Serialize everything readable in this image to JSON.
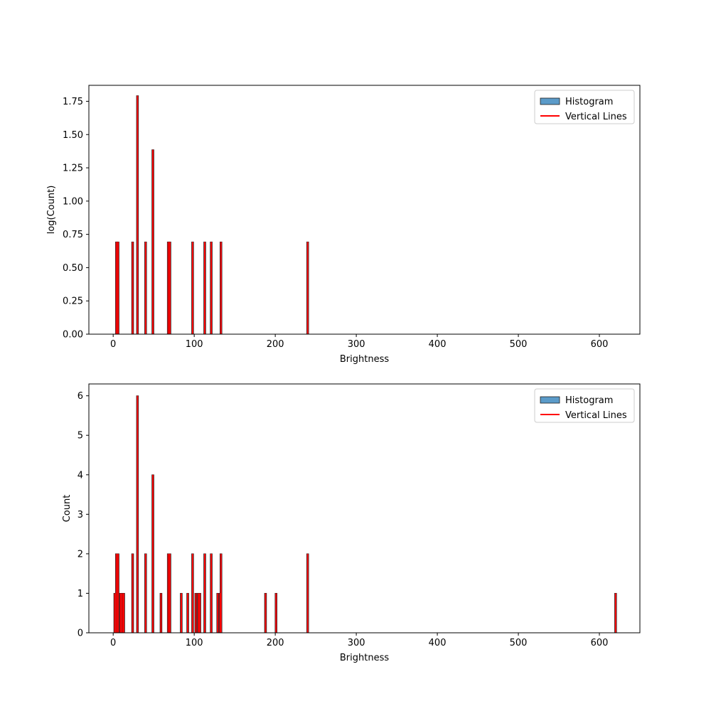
{
  "chart_data": [
    {
      "type": "bar",
      "panel": "top",
      "xlabel": "Brightness",
      "ylabel": "log(Count)",
      "xlim": [
        -30,
        650
      ],
      "ylim": [
        0,
        1.87
      ],
      "xticks": [
        0,
        100,
        200,
        300,
        400,
        500,
        600
      ],
      "yticks": [
        0.0,
        0.25,
        0.5,
        0.75,
        1.0,
        1.25,
        1.5,
        1.75
      ],
      "ytick_labels": [
        "0.00",
        "0.25",
        "0.50",
        "0.75",
        "1.00",
        "1.25",
        "1.50",
        "1.75"
      ],
      "legend": {
        "placement": "top-right",
        "entries": [
          "Histogram",
          "Vertical Lines"
        ]
      },
      "grid": false,
      "series": [
        {
          "name": "Histogram",
          "kind": "bar",
          "color": "#5b9bc9",
          "x": [
            4,
            6,
            24,
            30,
            40,
            49,
            68,
            70,
            98,
            113,
            121,
            133,
            240
          ],
          "values": [
            0.693,
            0.693,
            0.693,
            1.792,
            0.693,
            1.386,
            0.693,
            0.693,
            0.693,
            0.693,
            0.693,
            0.693,
            0.693
          ]
        },
        {
          "name": "Vertical Lines",
          "kind": "vlines",
          "color": "#ff0000",
          "x": [
            4,
            6,
            24,
            30,
            40,
            49,
            68,
            70,
            98,
            113,
            121,
            133,
            240
          ],
          "values": [
            0.693,
            0.693,
            0.693,
            1.792,
            0.693,
            1.386,
            0.693,
            0.693,
            0.693,
            0.693,
            0.693,
            0.693,
            0.693
          ]
        }
      ]
    },
    {
      "type": "bar",
      "panel": "bottom",
      "xlabel": "Brightness",
      "ylabel": "Count",
      "xlim": [
        -30,
        650
      ],
      "ylim": [
        0,
        6.3
      ],
      "xticks": [
        0,
        100,
        200,
        300,
        400,
        500,
        600
      ],
      "yticks": [
        0,
        1,
        2,
        3,
        4,
        5,
        6
      ],
      "ytick_labels": [
        "0",
        "1",
        "2",
        "3",
        "4",
        "5",
        "6"
      ],
      "legend": {
        "placement": "top-right",
        "entries": [
          "Histogram",
          "Vertical Lines"
        ]
      },
      "grid": false,
      "series": [
        {
          "name": "Histogram",
          "kind": "bar",
          "color": "#5b9bc9",
          "x": [
            2,
            4,
            6,
            9,
            11,
            13,
            24,
            30,
            40,
            49,
            59,
            68,
            70,
            84,
            92,
            98,
            102,
            105,
            107,
            113,
            121,
            129,
            132,
            133,
            188,
            201,
            240,
            620
          ],
          "values": [
            1,
            2,
            2,
            1,
            1,
            1,
            2,
            6,
            2,
            4,
            1,
            2,
            2,
            1,
            1,
            2,
            1,
            1,
            1,
            2,
            2,
            1,
            1,
            2,
            1,
            1,
            2,
            1
          ]
        },
        {
          "name": "Vertical Lines",
          "kind": "vlines",
          "color": "#ff0000",
          "x": [
            2,
            4,
            6,
            9,
            11,
            13,
            24,
            30,
            40,
            49,
            59,
            68,
            70,
            84,
            92,
            98,
            102,
            105,
            107,
            113,
            121,
            129,
            132,
            133,
            188,
            201,
            240,
            620
          ],
          "values": [
            1,
            2,
            2,
            1,
            1,
            1,
            2,
            6,
            2,
            4,
            1,
            2,
            2,
            1,
            1,
            2,
            1,
            1,
            1,
            2,
            2,
            1,
            1,
            2,
            1,
            1,
            2,
            1
          ]
        }
      ]
    }
  ]
}
